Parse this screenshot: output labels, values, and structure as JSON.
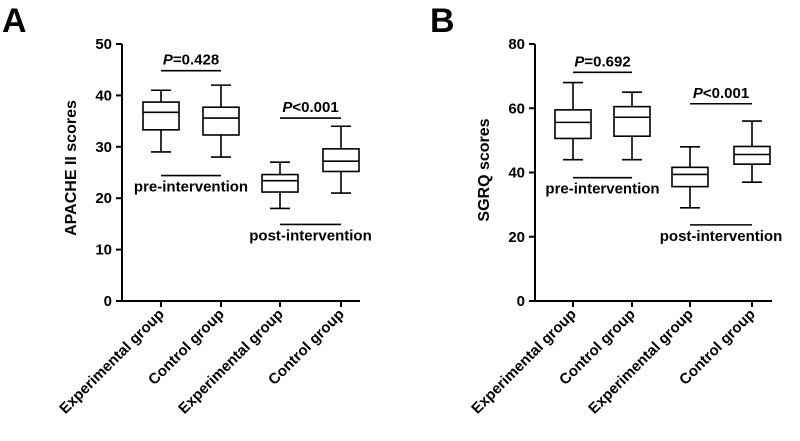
{
  "chart_data": [
    {
      "type": "box",
      "panel": "A",
      "ylabel": "APACHE II scores",
      "ylim": [
        0,
        50
      ],
      "yticks": [
        0,
        10,
        20,
        30,
        40,
        50
      ],
      "categories": [
        "Experimental group",
        "Control group",
        "Experimental group",
        "Control group"
      ],
      "boxes": [
        {
          "min": 29,
          "q1": 33.3,
          "median": 36.7,
          "q3": 38.7,
          "max": 41
        },
        {
          "min": 28,
          "q1": 32.3,
          "median": 35.6,
          "q3": 37.7,
          "max": 42
        },
        {
          "min": 18,
          "q1": 21.2,
          "median": 23.4,
          "q3": 24.6,
          "max": 27
        },
        {
          "min": 21,
          "q1": 25.2,
          "median": 27.2,
          "q3": 29.6,
          "max": 34
        }
      ],
      "comparisons": [
        {
          "p_prefix": "P",
          "p_text": "=0.428",
          "between": [
            0,
            1
          ],
          "y": 44.8
        },
        {
          "p_prefix": "P",
          "p_text": "<0.001",
          "between": [
            2,
            3
          ],
          "y": 35.6
        }
      ],
      "group_labels": [
        {
          "text": "pre-intervention",
          "between": [
            0,
            1
          ],
          "y": 24.4
        },
        {
          "text": "post-intervention",
          "between": [
            2,
            3
          ],
          "y": 14.9
        }
      ]
    },
    {
      "type": "box",
      "panel": "B",
      "ylabel": "SGRQ scores",
      "ylim": [
        0,
        80
      ],
      "yticks": [
        0,
        20,
        40,
        60,
        80
      ],
      "categories": [
        "Experimental group",
        "Control group",
        "Experimental group",
        "Control group"
      ],
      "boxes": [
        {
          "min": 44,
          "q1": 50.6,
          "median": 55.6,
          "q3": 59.5,
          "max": 68
        },
        {
          "min": 44,
          "q1": 51.3,
          "median": 57.2,
          "q3": 60.5,
          "max": 65
        },
        {
          "min": 29,
          "q1": 35.6,
          "median": 39.4,
          "q3": 41.6,
          "max": 48
        },
        {
          "min": 37,
          "q1": 42.6,
          "median": 45.6,
          "q3": 48.1,
          "max": 56
        }
      ],
      "comparisons": [
        {
          "p_prefix": "P",
          "p_text": "=0.692",
          "between": [
            0,
            1
          ],
          "y": 71.2
        },
        {
          "p_prefix": "P",
          "p_text": "<0.001",
          "between": [
            2,
            3
          ],
          "y": 61.4
        }
      ],
      "group_labels": [
        {
          "text": "pre-intervention",
          "between": [
            0,
            1
          ],
          "y": 38.4
        },
        {
          "text": "post-intervention",
          "between": [
            2,
            3
          ],
          "y": 23.7
        }
      ]
    }
  ]
}
